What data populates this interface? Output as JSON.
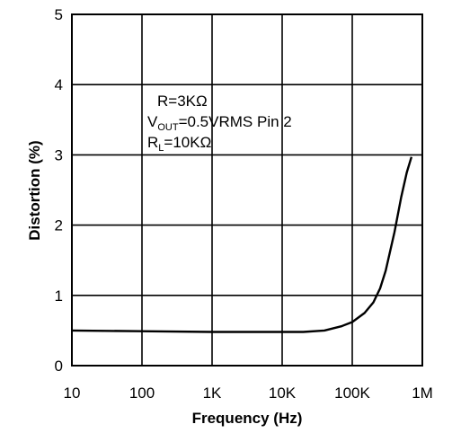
{
  "chart_data": {
    "type": "line",
    "xlabel": "Frequency (Hz)",
    "ylabel": "Distortion (%)",
    "xscale": "log",
    "xlim": [
      10,
      1000000
    ],
    "ylim": [
      0,
      5
    ],
    "grid": true,
    "x_ticks": [
      {
        "value": 10,
        "label": "10"
      },
      {
        "value": 100,
        "label": "100"
      },
      {
        "value": 1000,
        "label": "1K"
      },
      {
        "value": 10000,
        "label": "10K"
      },
      {
        "value": 100000,
        "label": "100K"
      },
      {
        "value": 1000000,
        "label": "1M"
      }
    ],
    "y_ticks": [
      {
        "value": 0,
        "label": "0"
      },
      {
        "value": 1,
        "label": "1"
      },
      {
        "value": 2,
        "label": "2"
      },
      {
        "value": 3,
        "label": "3"
      },
      {
        "value": 4,
        "label": "4"
      },
      {
        "value": 5,
        "label": "5"
      }
    ],
    "series": [
      {
        "x": [
          10,
          100,
          1000,
          10000,
          20000,
          40000,
          70000,
          100000,
          150000,
          200000,
          250000,
          300000,
          400000,
          500000,
          600000,
          700000
        ],
        "y": [
          0.5,
          0.49,
          0.48,
          0.48,
          0.48,
          0.5,
          0.56,
          0.62,
          0.75,
          0.9,
          1.1,
          1.35,
          1.9,
          2.4,
          2.75,
          2.97
        ]
      }
    ],
    "annotation": {
      "line1": "R=3KΩ",
      "line2_main": "V",
      "line2_sub": "OUT",
      "line2_rest": "=0.5VRMS Pin 2",
      "line3_main": "R",
      "line3_sub": "L",
      "line3_rest": "=10KΩ"
    }
  }
}
